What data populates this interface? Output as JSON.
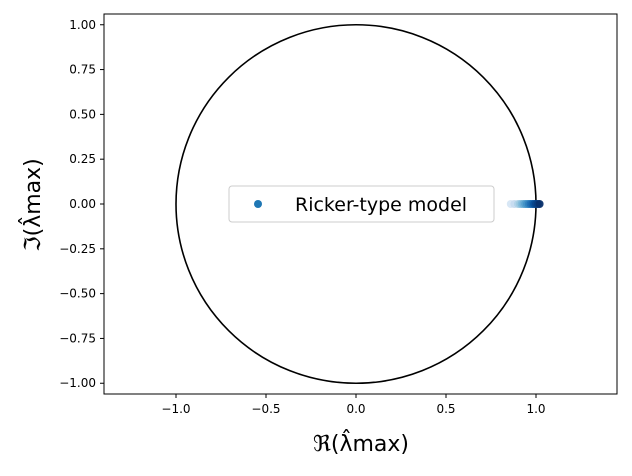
{
  "chart_data": {
    "type": "scatter",
    "title": "",
    "xlabel": "ℜ(λ̂max)",
    "ylabel": "ℑ(λ̂max)",
    "xlim": [
      -1.4,
      1.45
    ],
    "ylim": [
      -1.06,
      1.06
    ],
    "x_ticks": [
      -1.0,
      -0.5,
      0.0,
      0.5,
      1.0
    ],
    "x_tick_labels": [
      "−1.0",
      "−0.5",
      "0.0",
      "0.5",
      "1.0"
    ],
    "y_ticks": [
      1.0,
      0.75,
      0.5,
      0.25,
      0.0,
      -0.25,
      -0.5,
      -0.75,
      -1.0
    ],
    "y_tick_labels": [
      "1.00",
      "0.75",
      "0.50",
      "0.25",
      "0.00",
      "−0.25",
      "−0.50",
      "−0.75",
      "−1.00"
    ],
    "grid": false,
    "legend_position": "center",
    "unit_circle": {
      "center": [
        0,
        0
      ],
      "radius": 1,
      "color": "#000000"
    },
    "series": [
      {
        "name": "Ricker-type model",
        "color": "#1f77b4",
        "x": [
          0.86,
          0.88,
          0.9,
          0.91,
          0.92,
          0.93,
          0.94,
          0.95,
          0.96,
          0.97,
          0.98,
          0.99,
          1.0,
          1.01,
          1.02
        ],
        "y": [
          0,
          0,
          0,
          0,
          0,
          0,
          0,
          0,
          0,
          0,
          0,
          0,
          0,
          0,
          0
        ],
        "shades": [
          "#d6e6f4",
          "#c6dbef",
          "#b0d2e8",
          "#9ecae1",
          "#84bcdb",
          "#6baed6",
          "#549fcd",
          "#4292c6",
          "#3282be",
          "#2171b5",
          "#1764ab",
          "#08519c",
          "#08468a",
          "#083d7f",
          "#08306b"
        ]
      }
    ]
  }
}
